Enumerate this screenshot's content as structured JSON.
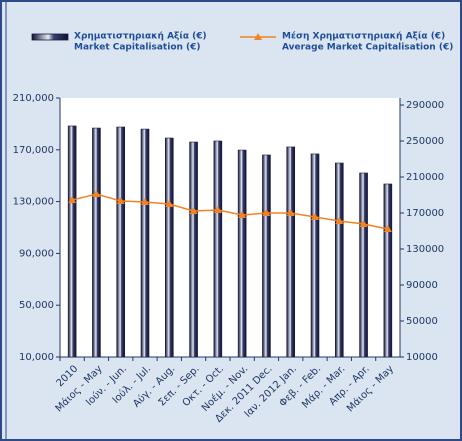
{
  "chart_data": {
    "type": "bar_line",
    "categories": [
      "2010",
      "Μάιος - May",
      "Ιούν. - Jun.",
      "Ιούλ. - Jul.",
      "Αύγ. - Aug.",
      "Σεπ. - Sep.",
      "Οκτ. - Oct.",
      "Νοέμ. - Nov.",
      "Δεκ. 2011 Dec.",
      "Ιαν. 2012 Jan.",
      "Φεβ. - Feb.",
      "Μάρ. - Mar.",
      "Απρ. - Apr.",
      "Μάιος - May"
    ],
    "series": [
      {
        "name": [
          "Χρηματιστηριακή Αξία (€)",
          "Market Capitalisation (€)"
        ],
        "color": "#1a1f3c",
        "type": "bar",
        "values": [
          188400,
          186800,
          187600,
          186000,
          179100,
          176000,
          176800,
          169800,
          166000,
          172200,
          166800,
          159800,
          152100,
          143600
        ]
      },
      {
        "name": [
          "Μέση Χρηματιστηριακή Αξία  (€)",
          "Average Market Capitalisation (€)"
        ],
        "color": "#f58220",
        "type": "line",
        "axis": "y2",
        "values": [
          184400,
          191100,
          183300,
          182200,
          180000,
          172200,
          173300,
          167800,
          170000,
          170000,
          165600,
          161100,
          157800,
          152200
        ]
      }
    ],
    "ylim": [
      10000,
      210000
    ],
    "yticks": [
      {
        "value": 10000,
        "label": "10,000"
      },
      {
        "value": 50000,
        "label": "50,000"
      },
      {
        "value": 90000,
        "label": "90,000"
      },
      {
        "value": 130000,
        "label": "130,000"
      },
      {
        "value": 170000,
        "label": "170,000"
      },
      {
        "value": 210000,
        "label": "210,000"
      }
    ],
    "y2lim": [
      10000,
      297800
    ],
    "y2ticks": [
      10000,
      50000,
      90000,
      130000,
      170000,
      210000,
      250000,
      290000
    ],
    "legend": "top",
    "grid": false
  }
}
